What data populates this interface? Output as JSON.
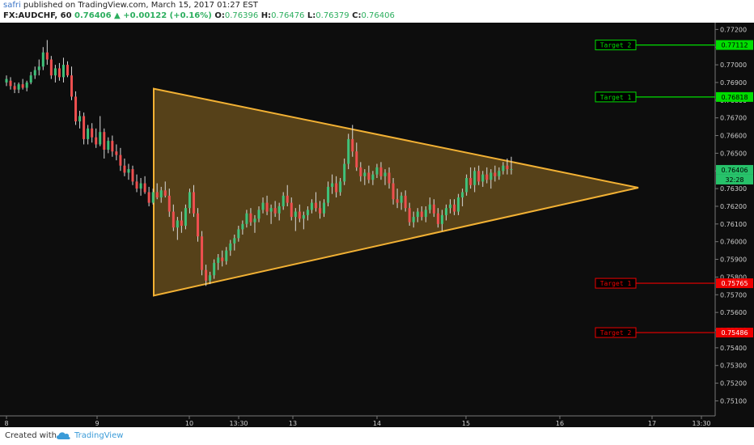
{
  "header": {
    "author": "safri",
    "published": " published on TradingView.com, March 15, 2017 01:27 EST",
    "symbol": "FX:AUDCHF, 60",
    "last": "0.76406",
    "change": "+0.00122 (+0.16%)",
    "o_label": "O:",
    "o_value": "0.76396",
    "h_label": "H:",
    "h_value": "0.76476",
    "l_label": "L:",
    "l_value": "0.76379",
    "c_label": "C:",
    "c_value": "0.76406"
  },
  "footer": {
    "created_with": "Created with",
    "brand": "TradingView"
  },
  "chart_data": {
    "type": "candlestick",
    "symbol": "FX:AUDCHF",
    "interval": "60",
    "y_ticks": [
      "0.77200",
      "0.77100",
      "0.77000",
      "0.76900",
      "0.76800",
      "0.76700",
      "0.76600",
      "0.76500",
      "0.76400",
      "0.76300",
      "0.76200",
      "0.76100",
      "0.76000",
      "0.75900",
      "0.75800",
      "0.75700",
      "0.75600",
      "0.75500",
      "0.75400",
      "0.75300",
      "0.75200",
      "0.75100"
    ],
    "x_ticks": [
      "8",
      "9",
      "10",
      "13:30",
      "13",
      "14",
      "15",
      "16",
      "17",
      "13:30"
    ],
    "ylim": [
      0.7507,
      0.7722
    ],
    "current_price": "0.76406",
    "countdown": "32:28",
    "triangle": {
      "apex_top_left": [
        "10 (pre-open)",
        0.76865
      ],
      "apex_bottom_left": [
        "10 (pre-open)",
        0.75695
      ],
      "apex_right": [
        "16-17",
        0.76305
      ]
    },
    "targets": [
      {
        "label": "Target 2",
        "price": "0.77112",
        "direction": "up",
        "color": "#00dd00"
      },
      {
        "label": "Target 1",
        "price": "0.76818",
        "direction": "up",
        "color": "#00dd00"
      },
      {
        "label": "Target 1",
        "price": "0.75765",
        "direction": "down",
        "color": "#ee0000"
      },
      {
        "label": "Target 2",
        "price": "0.75486",
        "direction": "down",
        "color": "#ee0000"
      }
    ],
    "colors": {
      "up": "#3fc27a",
      "down": "#ee4f4f",
      "triangle": "#f2b134",
      "background": "#0d0d0d"
    },
    "candles": [
      [
        0.769,
        0.7694,
        0.7688,
        0.7692
      ],
      [
        0.7691,
        0.7693,
        0.7686,
        0.7688
      ],
      [
        0.7688,
        0.769,
        0.7684,
        0.7686
      ],
      [
        0.7686,
        0.769,
        0.7684,
        0.7689
      ],
      [
        0.7689,
        0.7692,
        0.7686,
        0.7687
      ],
      [
        0.7687,
        0.7691,
        0.7685,
        0.769
      ],
      [
        0.769,
        0.7696,
        0.7689,
        0.7694
      ],
      [
        0.7694,
        0.7699,
        0.7692,
        0.7697
      ],
      [
        0.7697,
        0.7703,
        0.7694,
        0.7699
      ],
      [
        0.7699,
        0.771,
        0.7697,
        0.7707
      ],
      [
        0.7707,
        0.7714,
        0.77,
        0.7703
      ],
      [
        0.7703,
        0.7705,
        0.7692,
        0.7694
      ],
      [
        0.7694,
        0.77,
        0.769,
        0.7698
      ],
      [
        0.7698,
        0.7701,
        0.7691,
        0.7693
      ],
      [
        0.7693,
        0.7704,
        0.769,
        0.77
      ],
      [
        0.77,
        0.7702,
        0.7693,
        0.7694
      ],
      [
        0.7694,
        0.7699,
        0.768,
        0.7682
      ],
      [
        0.7682,
        0.7685,
        0.7666,
        0.7668
      ],
      [
        0.7668,
        0.7674,
        0.7664,
        0.7671
      ],
      [
        0.7671,
        0.7673,
        0.7655,
        0.7658
      ],
      [
        0.7658,
        0.7666,
        0.7655,
        0.7664
      ],
      [
        0.7664,
        0.7667,
        0.7656,
        0.7659
      ],
      [
        0.7659,
        0.7664,
        0.7653,
        0.7655
      ],
      [
        0.7655,
        0.7671,
        0.7654,
        0.7662
      ],
      [
        0.7662,
        0.7664,
        0.7647,
        0.7652
      ],
      [
        0.7652,
        0.7659,
        0.765,
        0.7657
      ],
      [
        0.7657,
        0.766,
        0.7648,
        0.7651
      ],
      [
        0.7651,
        0.7655,
        0.7646,
        0.7649
      ],
      [
        0.7649,
        0.7653,
        0.764,
        0.7643
      ],
      [
        0.7643,
        0.7647,
        0.7637,
        0.7639
      ],
      [
        0.7639,
        0.7644,
        0.7635,
        0.7641
      ],
      [
        0.7641,
        0.7643,
        0.7632,
        0.7634
      ],
      [
        0.7634,
        0.7638,
        0.7628,
        0.763
      ],
      [
        0.763,
        0.7636,
        0.7626,
        0.7633
      ],
      [
        0.7633,
        0.7637,
        0.7627,
        0.7628
      ],
      [
        0.7628,
        0.7631,
        0.762,
        0.7622
      ],
      [
        0.7622,
        0.763,
        0.7621,
        0.7628
      ],
      [
        0.7628,
        0.7633,
        0.7624,
        0.7625
      ],
      [
        0.7625,
        0.7631,
        0.7622,
        0.7629
      ],
      [
        0.7629,
        0.7634,
        0.7625,
        0.7626
      ],
      [
        0.7626,
        0.763,
        0.7614,
        0.7617
      ],
      [
        0.7617,
        0.7621,
        0.7606,
        0.7608
      ],
      [
        0.7608,
        0.7614,
        0.7601,
        0.7612
      ],
      [
        0.7612,
        0.7617,
        0.7605,
        0.7609
      ],
      [
        0.7609,
        0.7621,
        0.7607,
        0.7619
      ],
      [
        0.7619,
        0.763,
        0.7616,
        0.7628
      ],
      [
        0.7628,
        0.7632,
        0.7614,
        0.7616
      ],
      [
        0.7616,
        0.7619,
        0.76,
        0.7603
      ],
      [
        0.7603,
        0.7606,
        0.7581,
        0.7584
      ],
      [
        0.7584,
        0.7587,
        0.7575,
        0.7578
      ],
      [
        0.7578,
        0.7583,
        0.7576,
        0.7581
      ],
      [
        0.7581,
        0.759,
        0.7579,
        0.7588
      ],
      [
        0.7588,
        0.7593,
        0.7584,
        0.7591
      ],
      [
        0.7591,
        0.7595,
        0.7586,
        0.7589
      ],
      [
        0.7589,
        0.7597,
        0.7587,
        0.7595
      ],
      [
        0.7595,
        0.7601,
        0.7592,
        0.7599
      ],
      [
        0.7599,
        0.7604,
        0.7595,
        0.7602
      ],
      [
        0.7602,
        0.7609,
        0.76,
        0.7607
      ],
      [
        0.7607,
        0.7612,
        0.7604,
        0.761
      ],
      [
        0.761,
        0.7618,
        0.7608,
        0.7616
      ],
      [
        0.7616,
        0.7619,
        0.7609,
        0.7611
      ],
      [
        0.7611,
        0.7615,
        0.7605,
        0.7613
      ],
      [
        0.7613,
        0.762,
        0.7611,
        0.7618
      ],
      [
        0.7618,
        0.7625,
        0.7616,
        0.7622
      ],
      [
        0.7622,
        0.7626,
        0.7615,
        0.7617
      ],
      [
        0.7617,
        0.7621,
        0.761,
        0.7619
      ],
      [
        0.7619,
        0.7623,
        0.7614,
        0.7616
      ],
      [
        0.7616,
        0.7622,
        0.7612,
        0.762
      ],
      [
        0.762,
        0.7628,
        0.7618,
        0.7626
      ],
      [
        0.7626,
        0.7632,
        0.762,
        0.7622
      ],
      [
        0.7622,
        0.7625,
        0.7612,
        0.7614
      ],
      [
        0.7614,
        0.7619,
        0.7606,
        0.7617
      ],
      [
        0.7617,
        0.7621,
        0.7611,
        0.7613
      ],
      [
        0.7613,
        0.7617,
        0.7607,
        0.7615
      ],
      [
        0.7615,
        0.762,
        0.7612,
        0.7618
      ],
      [
        0.7618,
        0.7624,
        0.7616,
        0.7622
      ],
      [
        0.7622,
        0.7628,
        0.7617,
        0.7619
      ],
      [
        0.7619,
        0.7623,
        0.7613,
        0.7616
      ],
      [
        0.7616,
        0.7624,
        0.7614,
        0.7622
      ],
      [
        0.7622,
        0.7634,
        0.762,
        0.7631
      ],
      [
        0.7631,
        0.7638,
        0.7627,
        0.7633
      ],
      [
        0.7633,
        0.7637,
        0.7625,
        0.7628
      ],
      [
        0.7628,
        0.7636,
        0.7626,
        0.7634
      ],
      [
        0.7634,
        0.7647,
        0.7632,
        0.7644
      ],
      [
        0.7644,
        0.7661,
        0.7641,
        0.7658
      ],
      [
        0.7658,
        0.7666,
        0.7648,
        0.7651
      ],
      [
        0.7651,
        0.7656,
        0.764,
        0.7642
      ],
      [
        0.7642,
        0.7645,
        0.7634,
        0.7637
      ],
      [
        0.7637,
        0.7641,
        0.7632,
        0.7639
      ],
      [
        0.7639,
        0.7643,
        0.7633,
        0.7635
      ],
      [
        0.7635,
        0.764,
        0.7632,
        0.7638
      ],
      [
        0.7638,
        0.7644,
        0.7636,
        0.7642
      ],
      [
        0.7642,
        0.7645,
        0.7635,
        0.7637
      ],
      [
        0.7637,
        0.7641,
        0.7632,
        0.7639
      ],
      [
        0.7639,
        0.7642,
        0.763,
        0.7633
      ],
      [
        0.7633,
        0.7636,
        0.7621,
        0.7624
      ],
      [
        0.7624,
        0.763,
        0.7619,
        0.7622
      ],
      [
        0.7622,
        0.7628,
        0.7618,
        0.7626
      ],
      [
        0.7626,
        0.7629,
        0.7617,
        0.7619
      ],
      [
        0.7619,
        0.7622,
        0.7609,
        0.7611
      ],
      [
        0.7611,
        0.7617,
        0.7608,
        0.7614
      ],
      [
        0.7614,
        0.7619,
        0.7611,
        0.7617
      ],
      [
        0.7617,
        0.762,
        0.7612,
        0.7614
      ],
      [
        0.7614,
        0.762,
        0.7611,
        0.7618
      ],
      [
        0.7618,
        0.7625,
        0.7616,
        0.7621
      ],
      [
        0.7621,
        0.7624,
        0.7614,
        0.7616
      ],
      [
        0.7616,
        0.7619,
        0.7608,
        0.761
      ],
      [
        0.761,
        0.7618,
        0.7606,
        0.7615
      ],
      [
        0.7615,
        0.7621,
        0.7612,
        0.7619
      ],
      [
        0.7619,
        0.7624,
        0.7616,
        0.7621
      ],
      [
        0.7621,
        0.7624,
        0.7615,
        0.7617
      ],
      [
        0.7617,
        0.7627,
        0.7615,
        0.7625
      ],
      [
        0.7625,
        0.763,
        0.762,
        0.7628
      ],
      [
        0.7628,
        0.7638,
        0.7626,
        0.7636
      ],
      [
        0.7636,
        0.7642,
        0.763,
        0.7632
      ],
      [
        0.7632,
        0.7642,
        0.7628,
        0.764
      ],
      [
        0.764,
        0.7643,
        0.7632,
        0.7634
      ],
      [
        0.7634,
        0.764,
        0.7631,
        0.7638
      ],
      [
        0.7638,
        0.7642,
        0.7633,
        0.7635
      ],
      [
        0.7635,
        0.7641,
        0.763,
        0.7639
      ],
      [
        0.7639,
        0.7643,
        0.7634,
        0.7637
      ],
      [
        0.7637,
        0.7642,
        0.7635,
        0.764
      ],
      [
        0.764,
        0.7645,
        0.7638,
        0.7643
      ],
      [
        0.7643,
        0.7647,
        0.7638,
        0.7641
      ],
      [
        0.7641,
        0.7648,
        0.7638,
        0.7641
      ]
    ]
  }
}
